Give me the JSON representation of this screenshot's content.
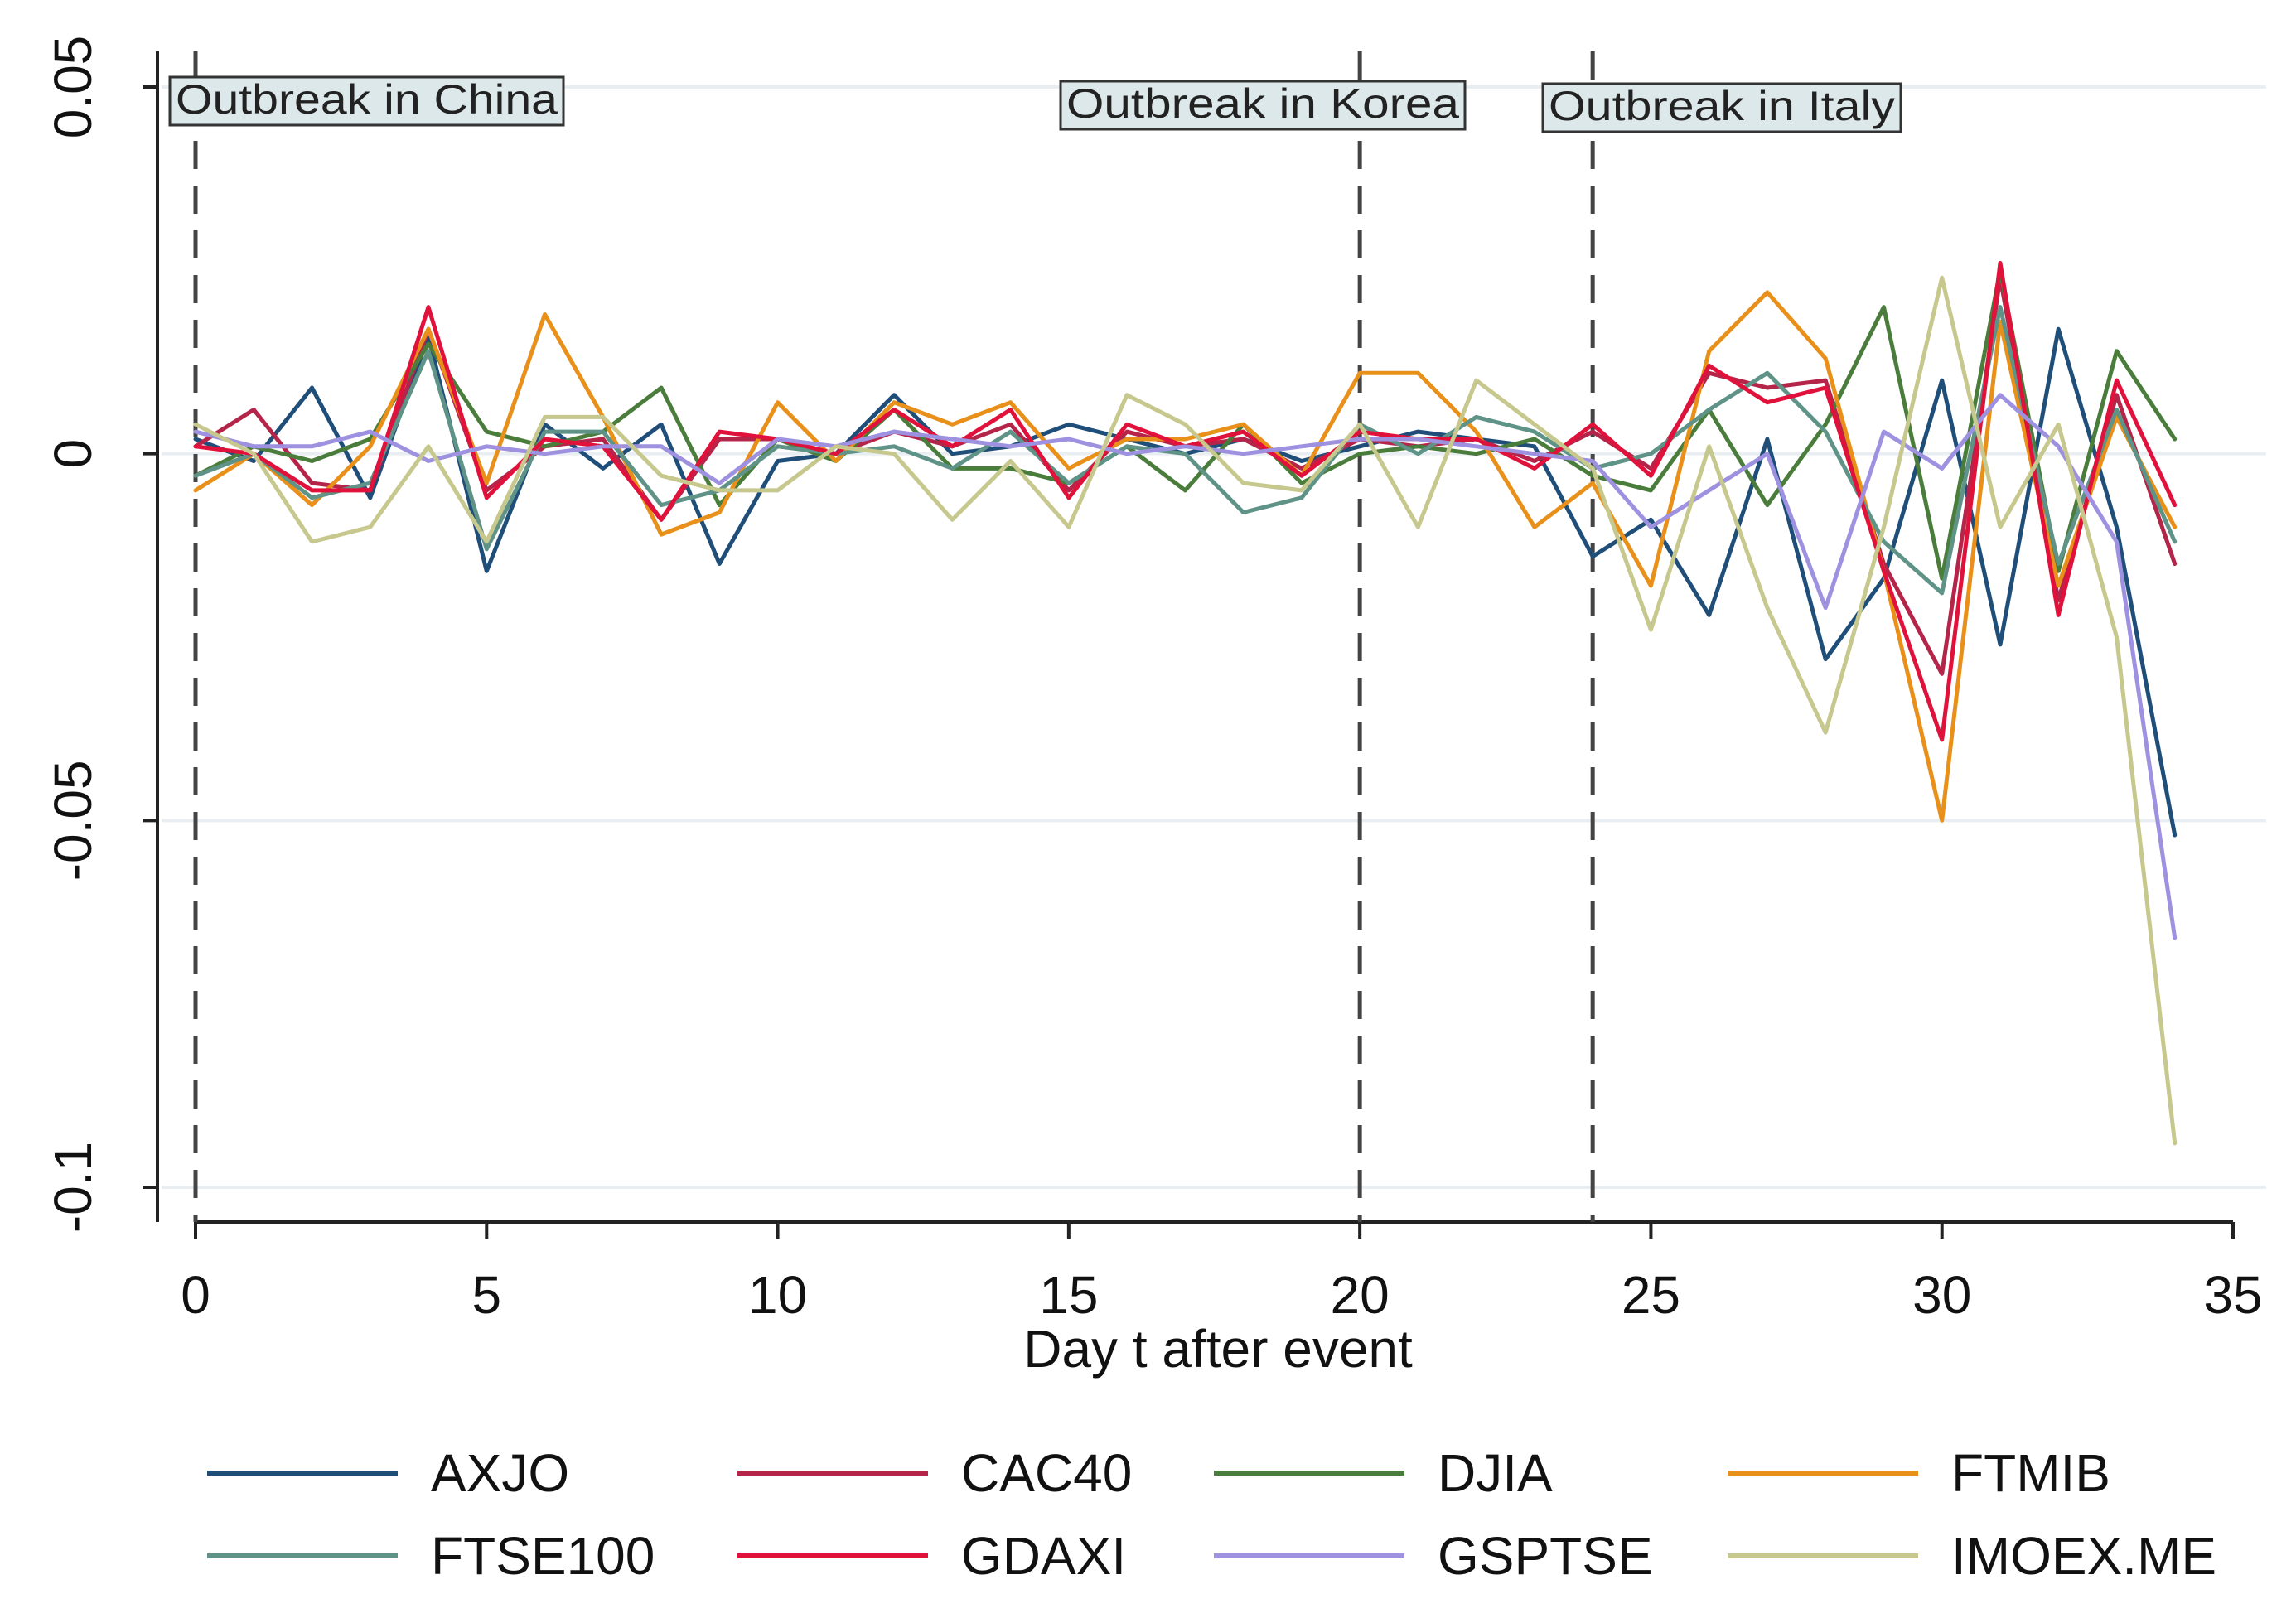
{
  "chart_data": {
    "type": "line",
    "title": "",
    "xlabel": "Day t after event",
    "ylabel": "",
    "xlim": [
      0,
      35
    ],
    "ylim": [
      -0.1,
      0.05
    ],
    "x_ticks": [
      0,
      5,
      10,
      15,
      20,
      25,
      30,
      35
    ],
    "x_tick_labels": [
      "0",
      "5",
      "10",
      "15",
      "20",
      "25",
      "30",
      "35"
    ],
    "y_ticks": [
      0.05,
      0,
      -0.05,
      -0.1
    ],
    "y_tick_labels": [
      "0.05",
      "0",
      "-0.05",
      "-0.1"
    ],
    "grid": true,
    "legend_position": "bottom",
    "annotations": [
      {
        "x": 0,
        "label": "Outbreak in China"
      },
      {
        "x": 20,
        "label": "Outbreak in Korea"
      },
      {
        "x": 24,
        "label": "Outbreak in Italy"
      }
    ],
    "x": [
      0,
      1,
      2,
      3,
      4,
      5,
      6,
      7,
      8,
      9,
      10,
      11,
      12,
      13,
      14,
      15,
      16,
      17,
      18,
      19,
      20,
      21,
      22,
      23,
      24,
      25,
      26,
      27,
      28,
      29,
      30,
      31,
      32,
      33,
      34
    ],
    "series": [
      {
        "name": "AXJO",
        "color": "#1f4e79",
        "values": [
          0.002,
          -0.001,
          0.009,
          -0.006,
          0.016,
          -0.016,
          0.004,
          -0.002,
          0.004,
          -0.015,
          -0.001,
          0.0,
          0.008,
          0.0,
          0.001,
          0.004,
          0.002,
          0.0,
          0.002,
          -0.001,
          0.001,
          0.003,
          0.002,
          0.001,
          -0.014,
          -0.009,
          -0.022,
          0.002,
          -0.028,
          -0.017,
          0.01,
          -0.026,
          0.017,
          -0.01,
          -0.052
        ]
      },
      {
        "name": "CAC40",
        "color": "#b5254a",
        "values": [
          0.001,
          0.006,
          -0.004,
          -0.005,
          0.017,
          -0.005,
          0.001,
          0.002,
          -0.009,
          0.002,
          0.002,
          0.0,
          0.003,
          0.001,
          0.004,
          -0.005,
          0.003,
          0.001,
          0.002,
          -0.002,
          0.002,
          0.001,
          0.002,
          -0.001,
          0.003,
          -0.002,
          0.011,
          0.009,
          0.01,
          -0.015,
          -0.03,
          0.024,
          -0.02,
          0.008,
          -0.015
        ]
      },
      {
        "name": "DJIA",
        "color": "#4a7d3b",
        "values": [
          -0.003,
          0.001,
          -0.001,
          0.002,
          0.015,
          0.003,
          0.001,
          0.003,
          0.009,
          -0.007,
          0.002,
          -0.001,
          0.006,
          -0.002,
          -0.002,
          -0.004,
          0.001,
          -0.005,
          0.004,
          -0.004,
          0.0,
          0.001,
          0.0,
          0.002,
          -0.003,
          -0.005,
          0.006,
          -0.007,
          0.004,
          0.02,
          -0.017,
          0.025,
          -0.016,
          0.014,
          0.002
        ]
      },
      {
        "name": "FTMIB",
        "color": "#e8901a",
        "values": [
          -0.005,
          0.0,
          -0.007,
          0.001,
          0.017,
          -0.004,
          0.019,
          0.005,
          -0.011,
          -0.008,
          0.007,
          -0.001,
          0.007,
          0.004,
          0.007,
          -0.002,
          0.002,
          0.002,
          0.004,
          -0.003,
          0.011,
          0.011,
          0.003,
          -0.01,
          -0.004,
          -0.018,
          0.014,
          0.022,
          0.013,
          -0.016,
          -0.05,
          0.018,
          -0.018,
          0.005,
          -0.01
        ]
      },
      {
        "name": "FTSE100",
        "color": "#5f9387",
        "values": [
          -0.003,
          0.0,
          -0.006,
          -0.004,
          0.014,
          -0.013,
          0.003,
          0.003,
          -0.007,
          -0.005,
          0.001,
          0.0,
          0.001,
          -0.002,
          0.003,
          -0.004,
          0.001,
          0.0,
          -0.008,
          -0.006,
          0.004,
          0.0,
          0.005,
          0.003,
          -0.002,
          0.0,
          0.006,
          0.011,
          0.003,
          -0.012,
          -0.019,
          0.02,
          -0.015,
          0.006,
          -0.012
        ]
      },
      {
        "name": "GDAXI",
        "color": "#e0123c",
        "values": [
          0.001,
          0.0,
          -0.005,
          -0.005,
          0.02,
          -0.006,
          0.002,
          0.001,
          -0.009,
          0.003,
          0.002,
          0.0,
          0.006,
          0.001,
          0.006,
          -0.006,
          0.004,
          0.001,
          0.003,
          -0.003,
          0.003,
          0.002,
          0.002,
          -0.002,
          0.004,
          -0.003,
          0.012,
          0.007,
          0.009,
          -0.016,
          -0.039,
          0.026,
          -0.022,
          0.01,
          -0.007
        ]
      },
      {
        "name": "GSPTSE",
        "color": "#9d91e0",
        "values": [
          0.003,
          0.001,
          0.001,
          0.003,
          -0.001,
          0.001,
          0.0,
          0.001,
          0.001,
          -0.004,
          0.002,
          0.001,
          0.003,
          0.002,
          0.001,
          0.002,
          0.0,
          0.001,
          0.0,
          0.001,
          0.002,
          0.002,
          0.001,
          0.0,
          -0.001,
          -0.01,
          -0.005,
          0.0,
          -0.021,
          0.003,
          -0.002,
          0.008,
          0.001,
          -0.012,
          -0.066
        ]
      },
      {
        "name": "IMOEX.ME",
        "color": "#c7c88d",
        "values": [
          0.004,
          0.0,
          -0.012,
          -0.01,
          0.001,
          -0.012,
          0.005,
          0.005,
          -0.003,
          -0.005,
          -0.005,
          0.001,
          0.0,
          -0.009,
          -0.001,
          -0.01,
          0.008,
          0.004,
          -0.004,
          -0.005,
          0.004,
          -0.01,
          0.01,
          0.004,
          -0.002,
          -0.024,
          0.001,
          -0.021,
          -0.038,
          -0.01,
          0.024,
          -0.01,
          0.004,
          -0.025,
          -0.094
        ]
      }
    ]
  }
}
